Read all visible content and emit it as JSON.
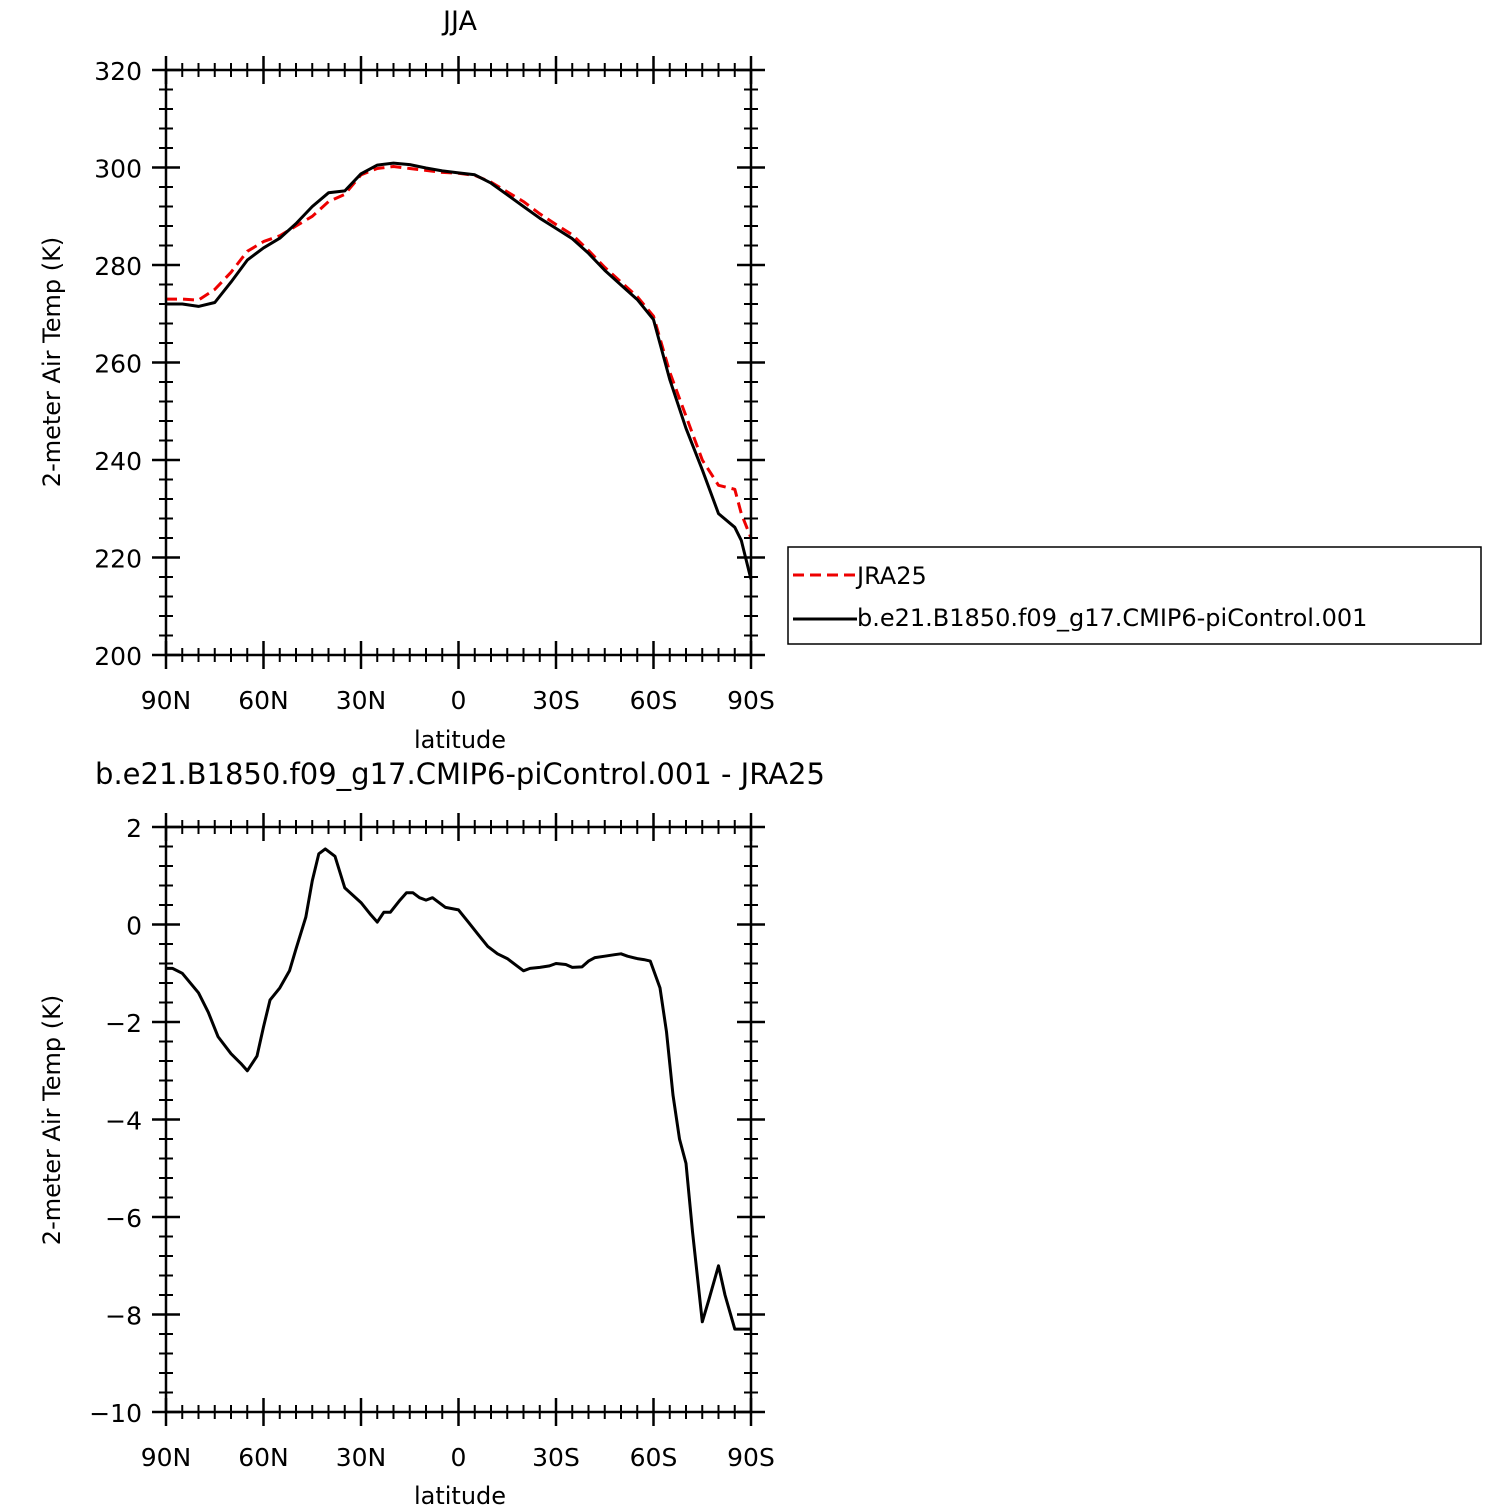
{
  "chart_data": [
    {
      "type": "line",
      "title": "JJA",
      "xlabel": "latitude",
      "ylabel": "2-meter Air Temp (K)",
      "xlim": [
        90,
        -90
      ],
      "ylim": [
        200,
        320
      ],
      "xticks": [
        90,
        60,
        30,
        0,
        -30,
        -60,
        -90
      ],
      "xticklabels": [
        "90N",
        "60N",
        "30N",
        "0",
        "30S",
        "60S",
        "90S"
      ],
      "yticks": [
        200,
        220,
        240,
        260,
        280,
        300,
        320
      ],
      "yticklabels": [
        "200",
        "220",
        "240",
        "260",
        "280",
        "300",
        "320"
      ],
      "grid": false,
      "legend": {
        "position": "right",
        "entries": [
          "JRA25",
          "b.e21.B1850.f09_g17.CMIP6-piControl.001"
        ]
      },
      "series": [
        {
          "name": "JRA25",
          "color": "#ee0000",
          "dash": "dashed",
          "x": [
            90,
            85,
            80,
            75,
            70,
            65,
            60,
            55,
            50,
            45,
            40,
            35,
            30,
            25,
            20,
            15,
            10,
            5,
            0,
            -5,
            -10,
            -15,
            -20,
            -25,
            -30,
            -35,
            -40,
            -45,
            -50,
            -55,
            -60,
            -65,
            -70,
            -75,
            -80,
            -85,
            -87,
            -90
          ],
          "y": [
            273.0,
            273.0,
            272.8,
            275.0,
            278.5,
            282.8,
            284.8,
            286.0,
            288.0,
            290.0,
            293.0,
            294.5,
            298.5,
            299.8,
            300.2,
            299.8,
            299.4,
            299.0,
            298.8,
            298.4,
            297.0,
            295.0,
            293.0,
            290.5,
            288.3,
            286.2,
            283.0,
            279.5,
            276.5,
            273.5,
            269.5,
            258.0,
            249.0,
            240.0,
            234.8,
            234.0,
            229.0,
            224.0
          ]
        },
        {
          "name": "b.e21.B1850.f09_g17.CMIP6-piControl.001",
          "color": "#000000",
          "dash": "solid",
          "x": [
            90,
            85,
            80,
            75,
            70,
            65,
            60,
            55,
            50,
            45,
            40,
            35,
            30,
            25,
            20,
            15,
            10,
            5,
            0,
            -5,
            -10,
            -15,
            -20,
            -25,
            -30,
            -35,
            -40,
            -45,
            -50,
            -55,
            -60,
            -65,
            -70,
            -75,
            -80,
            -85,
            -87,
            -90
          ],
          "y": [
            272.0,
            272.0,
            271.5,
            272.3,
            276.5,
            281.0,
            283.5,
            285.5,
            288.5,
            292.0,
            294.8,
            295.2,
            298.7,
            300.5,
            300.9,
            300.6,
            299.9,
            299.3,
            298.9,
            298.5,
            296.8,
            294.4,
            292.0,
            289.6,
            287.5,
            285.4,
            282.4,
            278.9,
            275.9,
            272.9,
            268.8,
            256.5,
            246.5,
            238.0,
            229.0,
            226.2,
            223.5,
            215.5
          ]
        }
      ]
    },
    {
      "type": "line",
      "title": "b.e21.B1850.f09_g17.CMIP6-piControl.001  -  JRA25",
      "xlabel": "latitude",
      "ylabel": "2-meter Air Temp (K)",
      "xlim": [
        90,
        -90
      ],
      "ylim": [
        -10,
        2
      ],
      "xticks": [
        90,
        60,
        30,
        0,
        -30,
        -60,
        -90
      ],
      "xticklabels": [
        "90N",
        "60N",
        "30N",
        "0",
        "30S",
        "60S",
        "90S"
      ],
      "yticks": [
        -10,
        -8,
        -6,
        -4,
        -2,
        0,
        2
      ],
      "yticklabels": [
        "−10",
        "−8",
        "−6",
        "−4",
        "−2",
        "0",
        "2"
      ],
      "grid": false,
      "series": [
        {
          "color": "#000000",
          "dash": "solid",
          "x": [
            90,
            88,
            85,
            80,
            77,
            74,
            70,
            67,
            65,
            62,
            60,
            58,
            55,
            52,
            50,
            47,
            45,
            43,
            41,
            38,
            35,
            30,
            27,
            25,
            23,
            21,
            18,
            16,
            14,
            12,
            10,
            8,
            6,
            4,
            0,
            -3,
            -6,
            -9,
            -12,
            -15,
            -18,
            -20,
            -22,
            -25,
            -28,
            -30,
            -33,
            -35,
            -38,
            -40,
            -42,
            -45,
            -48,
            -50,
            -52,
            -55,
            -57,
            -59,
            -62,
            -64,
            -66,
            -68,
            -70,
            -72,
            -75,
            -77,
            -80,
            -82,
            -85,
            -87,
            -90
          ],
          "y": [
            -0.9,
            -0.9,
            -1.0,
            -1.4,
            -1.8,
            -2.3,
            -2.65,
            -2.85,
            -3.0,
            -2.7,
            -2.1,
            -1.55,
            -1.3,
            -0.95,
            -0.5,
            0.15,
            0.9,
            1.45,
            1.55,
            1.4,
            0.75,
            0.45,
            0.2,
            0.05,
            0.25,
            0.25,
            0.5,
            0.65,
            0.65,
            0.55,
            0.5,
            0.55,
            0.45,
            0.35,
            0.3,
            0.05,
            -0.2,
            -0.45,
            -0.6,
            -0.7,
            -0.85,
            -0.95,
            -0.9,
            -0.88,
            -0.85,
            -0.8,
            -0.82,
            -0.88,
            -0.87,
            -0.75,
            -0.68,
            -0.65,
            -0.62,
            -0.6,
            -0.65,
            -0.7,
            -0.72,
            -0.75,
            -1.3,
            -2.2,
            -3.5,
            -4.4,
            -4.9,
            -6.3,
            -8.15,
            -7.7,
            -7.0,
            -7.6,
            -8.3,
            -8.3,
            -8.3
          ]
        }
      ]
    }
  ]
}
